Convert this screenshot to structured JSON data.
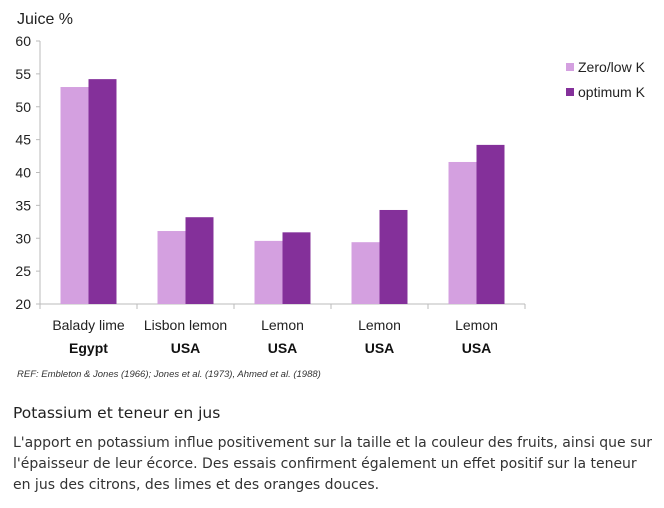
{
  "chart_data": {
    "type": "bar",
    "ylabel": "Juice %",
    "ylim": [
      20,
      60
    ],
    "yticks": [
      20,
      25,
      30,
      35,
      40,
      45,
      50,
      55,
      60
    ],
    "categories": [
      "Balady lime",
      "Lisbon lemon",
      "Lemon",
      "Lemon",
      "Lemon"
    ],
    "countries": [
      "Egypt",
      "USA",
      "USA",
      "USA",
      "USA"
    ],
    "legend_position": "right",
    "series": [
      {
        "name": "Zero/low  K",
        "color": "#d4a0e0",
        "values": [
          53.0,
          31.1,
          29.6,
          29.4,
          41.6
        ]
      },
      {
        "name": "optimum K",
        "color": "#84309a",
        "values": [
          54.2,
          33.2,
          30.9,
          34.3,
          44.2
        ]
      }
    ]
  },
  "reference": "REF: Embleton & Jones (1966); Jones et al. (1973), Ahmed et al. (1988)",
  "section": {
    "heading": "Potassium et teneur en jus",
    "body": "L'apport en potassium influe positivement sur la taille et la couleur des fruits, ainsi que sur l'épaisseur de leur écorce. Des essais confirment également un effet positif sur la teneur en jus des citrons, des limes et des oranges douces."
  }
}
